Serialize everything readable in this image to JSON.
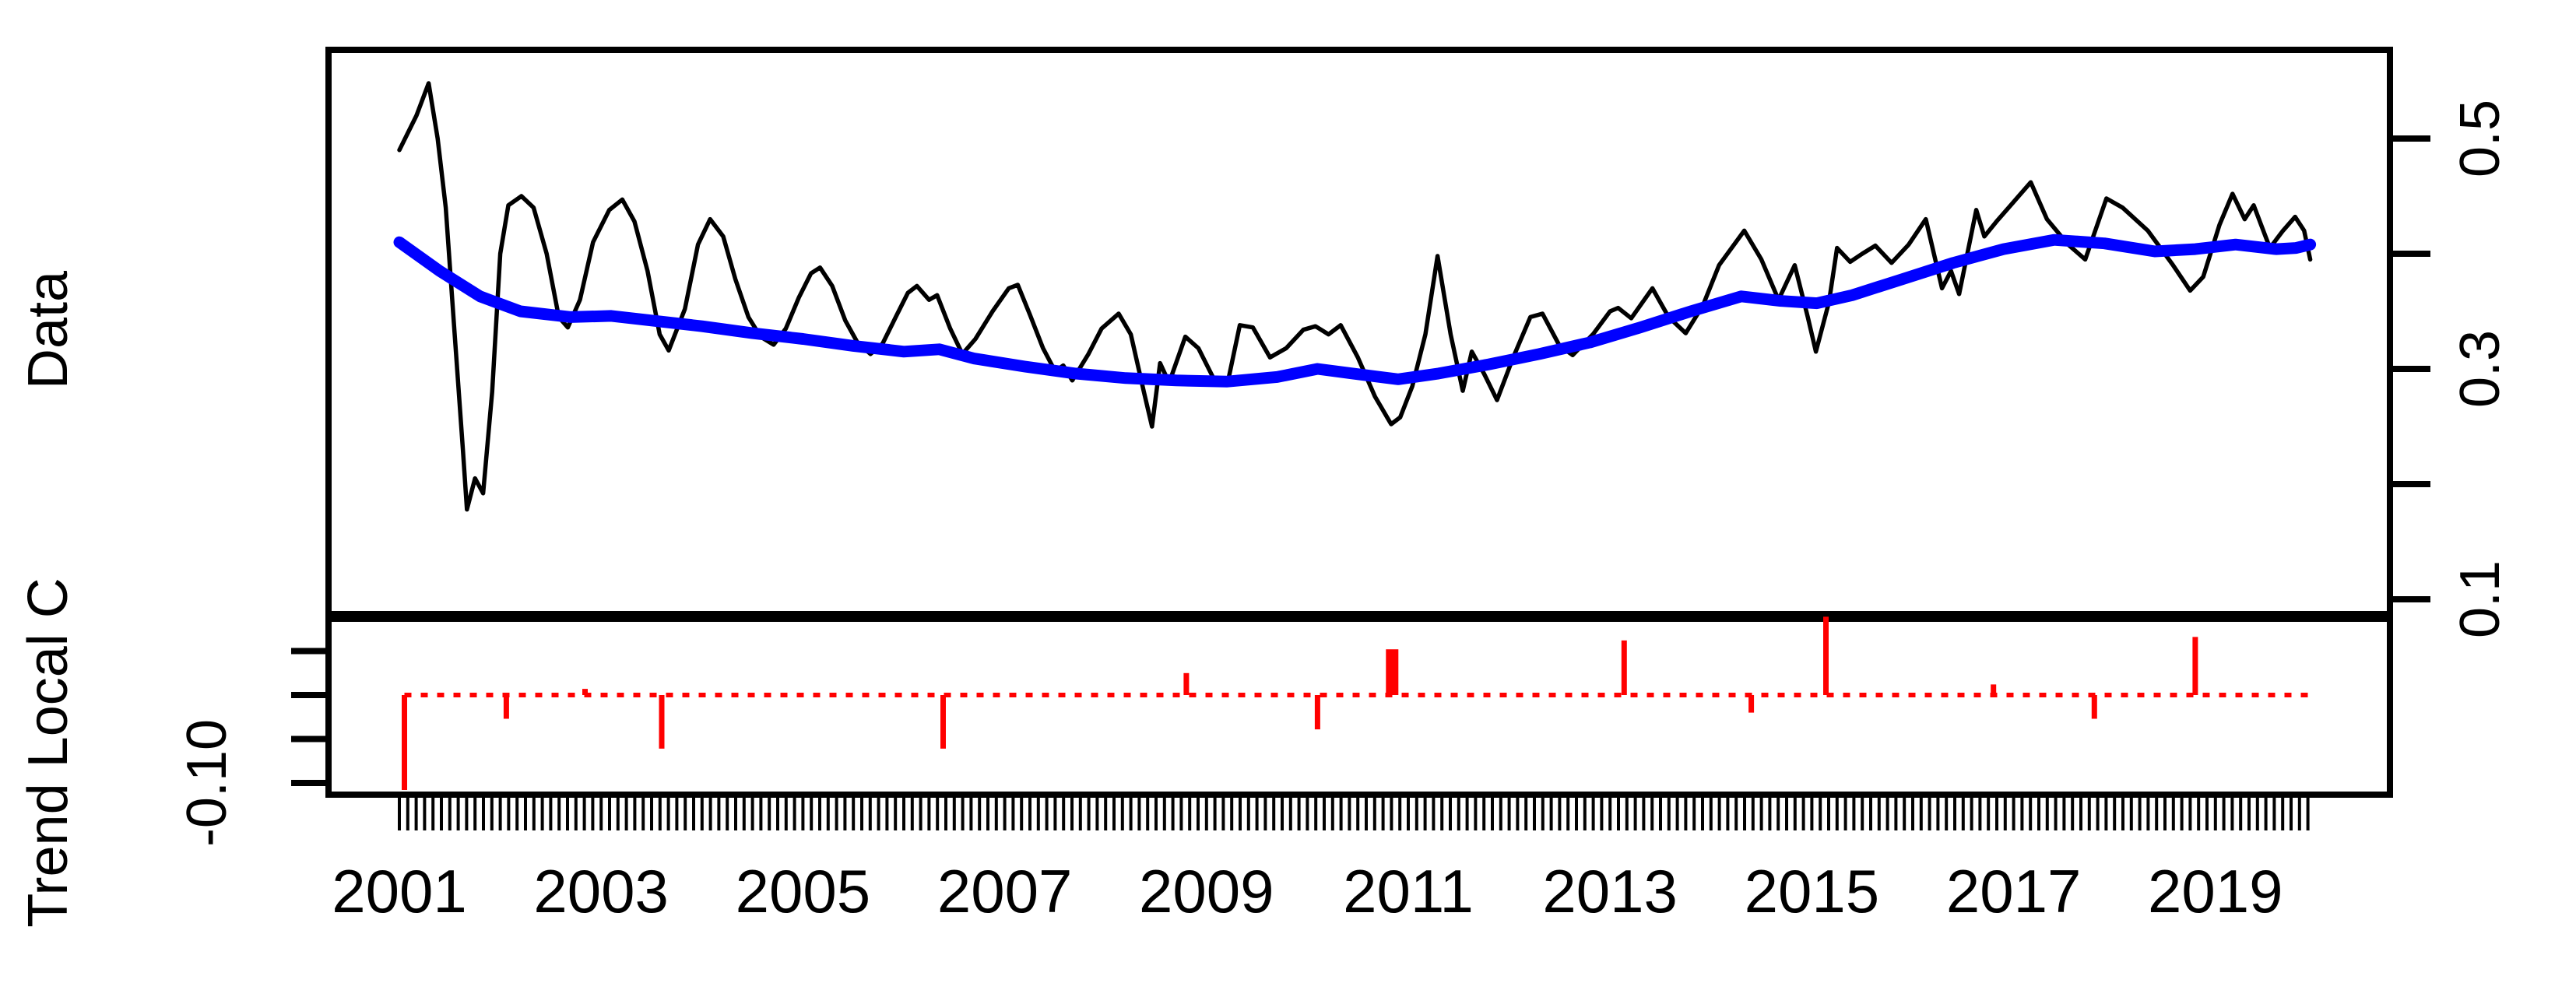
{
  "figure": {
    "background": "#ffffff",
    "frame_color": "#000000"
  },
  "labels": {
    "top_panel_ylab": "Data",
    "bottom_panel_ylab": "Trend Local C",
    "bottom_axis_tick_label": "-0.10",
    "right_axis_tick_labels": [
      "0.1",
      "0.3",
      "0.5"
    ]
  },
  "chart_data": {
    "type": "line",
    "title": "",
    "xlabel": "",
    "x_unit": "decimal_year",
    "frequency": 12,
    "x_range": [
      2001.0,
      2019.94
    ],
    "x_tick_years": [
      2001,
      2003,
      2005,
      2007,
      2009,
      2011,
      2013,
      2015,
      2017,
      2019
    ],
    "x_tick_labels": [
      "2001",
      "2003",
      "2005",
      "2007",
      "2009",
      "2011",
      "2013",
      "2015",
      "2017",
      "2019"
    ],
    "rug": {
      "count": 228,
      "start": 2001.0,
      "step_years": 0.0833333
    },
    "panels": [
      {
        "name": "Data",
        "ylabel": "Data",
        "axis_side": "right",
        "ylim": [
          0.085,
          0.577
        ],
        "yticks": [
          0.1,
          0.2,
          0.3,
          0.4,
          0.5
        ],
        "ytick_labeled": [
          0.1,
          0.3,
          0.5
        ],
        "grid": false,
        "series": [
          {
            "name": "observed",
            "type": "line",
            "color": "#000000",
            "stroke_width": 5.5,
            "points": [
              [
                2001.0,
                0.49
              ],
              [
                2001.17,
                0.52
              ],
              [
                2001.29,
                0.548
              ],
              [
                2001.38,
                0.5
              ],
              [
                2001.46,
                0.44
              ],
              [
                2001.54,
                0.34
              ],
              [
                2001.63,
                0.23
              ],
              [
                2001.67,
                0.178
              ],
              [
                2001.75,
                0.205
              ],
              [
                2001.83,
                0.192
              ],
              [
                2001.92,
                0.28
              ],
              [
                2002.0,
                0.4
              ],
              [
                2002.08,
                0.442
              ],
              [
                2002.21,
                0.45
              ],
              [
                2002.33,
                0.44
              ],
              [
                2002.46,
                0.4
              ],
              [
                2002.58,
                0.345
              ],
              [
                2002.67,
                0.336
              ],
              [
                2002.79,
                0.36
              ],
              [
                2002.92,
                0.41
              ],
              [
                2003.08,
                0.438
              ],
              [
                2003.21,
                0.447
              ],
              [
                2003.33,
                0.428
              ],
              [
                2003.46,
                0.385
              ],
              [
                2003.58,
                0.33
              ],
              [
                2003.67,
                0.316
              ],
              [
                2003.83,
                0.352
              ],
              [
                2003.96,
                0.408
              ],
              [
                2004.08,
                0.43
              ],
              [
                2004.21,
                0.415
              ],
              [
                2004.33,
                0.378
              ],
              [
                2004.46,
                0.345
              ],
              [
                2004.58,
                0.328
              ],
              [
                2004.71,
                0.321
              ],
              [
                2004.83,
                0.335
              ],
              [
                2004.96,
                0.362
              ],
              [
                2005.08,
                0.383
              ],
              [
                2005.17,
                0.388
              ],
              [
                2005.29,
                0.372
              ],
              [
                2005.42,
                0.342
              ],
              [
                2005.54,
                0.323
              ],
              [
                2005.67,
                0.313
              ],
              [
                2005.79,
                0.322
              ],
              [
                2005.92,
                0.345
              ],
              [
                2006.04,
                0.366
              ],
              [
                2006.13,
                0.372
              ],
              [
                2006.25,
                0.36
              ],
              [
                2006.33,
                0.364
              ],
              [
                2006.46,
                0.335
              ],
              [
                2006.58,
                0.313
              ],
              [
                2006.71,
                0.326
              ],
              [
                2006.88,
                0.35
              ],
              [
                2007.04,
                0.37
              ],
              [
                2007.13,
                0.373
              ],
              [
                2007.25,
                0.347
              ],
              [
                2007.38,
                0.318
              ],
              [
                2007.5,
                0.298
              ],
              [
                2007.58,
                0.303
              ],
              [
                2007.67,
                0.29
              ],
              [
                2007.83,
                0.313
              ],
              [
                2007.96,
                0.335
              ],
              [
                2008.13,
                0.348
              ],
              [
                2008.25,
                0.33
              ],
              [
                2008.38,
                0.28
              ],
              [
                2008.46,
                0.25
              ],
              [
                2008.54,
                0.305
              ],
              [
                2008.63,
                0.288
              ],
              [
                2008.79,
                0.328
              ],
              [
                2008.92,
                0.318
              ],
              [
                2009.08,
                0.29
              ],
              [
                2009.21,
                0.288
              ],
              [
                2009.33,
                0.338
              ],
              [
                2009.46,
                0.336
              ],
              [
                2009.63,
                0.31
              ],
              [
                2009.79,
                0.318
              ],
              [
                2009.96,
                0.334
              ],
              [
                2010.08,
                0.337
              ],
              [
                2010.21,
                0.33
              ],
              [
                2010.33,
                0.338
              ],
              [
                2010.5,
                0.31
              ],
              [
                2010.67,
                0.276
              ],
              [
                2010.83,
                0.252
              ],
              [
                2010.92,
                0.258
              ],
              [
                2011.04,
                0.285
              ],
              [
                2011.17,
                0.33
              ],
              [
                2011.29,
                0.398
              ],
              [
                2011.42,
                0.33
              ],
              [
                2011.54,
                0.281
              ],
              [
                2011.63,
                0.315
              ],
              [
                2011.75,
                0.296
              ],
              [
                2011.88,
                0.273
              ],
              [
                2012.04,
                0.31
              ],
              [
                2012.21,
                0.345
              ],
              [
                2012.33,
                0.348
              ],
              [
                2012.5,
                0.32
              ],
              [
                2012.63,
                0.312
              ],
              [
                2012.83,
                0.33
              ],
              [
                2013.0,
                0.35
              ],
              [
                2013.08,
                0.353
              ],
              [
                2013.21,
                0.344
              ],
              [
                2013.42,
                0.37
              ],
              [
                2013.58,
                0.345
              ],
              [
                2013.75,
                0.331
              ],
              [
                2013.92,
                0.355
              ],
              [
                2014.08,
                0.39
              ],
              [
                2014.33,
                0.42
              ],
              [
                2014.5,
                0.395
              ],
              [
                2014.67,
                0.36
              ],
              [
                2014.83,
                0.39
              ],
              [
                2014.96,
                0.345
              ],
              [
                2015.04,
                0.315
              ],
              [
                2015.17,
                0.358
              ],
              [
                2015.25,
                0.405
              ],
              [
                2015.38,
                0.393
              ],
              [
                2015.5,
                0.4
              ],
              [
                2015.63,
                0.407
              ],
              [
                2015.79,
                0.392
              ],
              [
                2015.96,
                0.408
              ],
              [
                2016.13,
                0.43
              ],
              [
                2016.29,
                0.37
              ],
              [
                2016.38,
                0.385
              ],
              [
                2016.46,
                0.365
              ],
              [
                2016.63,
                0.438
              ],
              [
                2016.71,
                0.415
              ],
              [
                2016.83,
                0.428
              ],
              [
                2017.0,
                0.445
              ],
              [
                2017.17,
                0.462
              ],
              [
                2017.33,
                0.43
              ],
              [
                2017.54,
                0.408
              ],
              [
                2017.71,
                0.395
              ],
              [
                2017.92,
                0.448
              ],
              [
                2018.08,
                0.44
              ],
              [
                2018.33,
                0.42
              ],
              [
                2018.58,
                0.39
              ],
              [
                2018.75,
                0.368
              ],
              [
                2018.88,
                0.38
              ],
              [
                2019.04,
                0.425
              ],
              [
                2019.17,
                0.452
              ],
              [
                2019.29,
                0.43
              ],
              [
                2019.38,
                0.442
              ],
              [
                2019.54,
                0.405
              ],
              [
                2019.67,
                0.42
              ],
              [
                2019.79,
                0.432
              ],
              [
                2019.88,
                0.42
              ],
              [
                2019.94,
                0.395
              ]
            ]
          },
          {
            "name": "trend-smooth",
            "type": "line",
            "color": "#0000ff",
            "stroke_width": 15,
            "points": [
              [
                2001.0,
                0.41
              ],
              [
                2001.4,
                0.385
              ],
              [
                2001.8,
                0.363
              ],
              [
                2002.2,
                0.35
              ],
              [
                2002.7,
                0.345
              ],
              [
                2003.1,
                0.346
              ],
              [
                2003.5,
                0.342
              ],
              [
                2004.0,
                0.337
              ],
              [
                2004.5,
                0.331
              ],
              [
                2005.0,
                0.326
              ],
              [
                2005.5,
                0.32
              ],
              [
                2006.0,
                0.315
              ],
              [
                2006.35,
                0.317
              ],
              [
                2006.7,
                0.309
              ],
              [
                2007.2,
                0.302
              ],
              [
                2007.7,
                0.296
              ],
              [
                2008.2,
                0.292
              ],
              [
                2008.7,
                0.29
              ],
              [
                2009.2,
                0.289
              ],
              [
                2009.7,
                0.293
              ],
              [
                2010.1,
                0.3
              ],
              [
                2010.45,
                0.296
              ],
              [
                2010.9,
                0.291
              ],
              [
                2011.3,
                0.296
              ],
              [
                2011.8,
                0.304
              ],
              [
                2012.3,
                0.313
              ],
              [
                2012.8,
                0.323
              ],
              [
                2013.3,
                0.336
              ],
              [
                2013.8,
                0.35
              ],
              [
                2014.3,
                0.363
              ],
              [
                2014.7,
                0.359
              ],
              [
                2015.05,
                0.357
              ],
              [
                2015.4,
                0.364
              ],
              [
                2015.9,
                0.378
              ],
              [
                2016.4,
                0.392
              ],
              [
                2016.9,
                0.404
              ],
              [
                2017.4,
                0.412
              ],
              [
                2017.9,
                0.409
              ],
              [
                2018.4,
                0.402
              ],
              [
                2018.8,
                0.404
              ],
              [
                2019.2,
                0.408
              ],
              [
                2019.6,
                0.404
              ],
              [
                2019.8,
                0.405
              ],
              [
                2019.94,
                0.408
              ]
            ]
          }
        ]
      },
      {
        "name": "Trend Local C",
        "ylabel": "Trend Local C",
        "axis_side": "left",
        "ylim": [
          -0.113,
          0.089
        ],
        "yticks": [
          0.05,
          0.0,
          -0.05,
          -0.1
        ],
        "ytick_labeled": [
          -0.1
        ],
        "grid": false,
        "zero_line": {
          "value": 0.0,
          "style": "dotted",
          "color": "#ff0000",
          "x_from": 2001.05,
          "x_to": 2019.98
        },
        "series": [
          {
            "name": "local-trend-changes",
            "type": "spikes",
            "color": "#ff0000",
            "stroke_width": 7,
            "thick_at": 2010.84,
            "thick_stroke_width": 16,
            "points": [
              [
                2001.05,
                -0.108
              ],
              [
                2002.06,
                -0.027
              ],
              [
                2002.84,
                0.007
              ],
              [
                2003.6,
                -0.061
              ],
              [
                2006.39,
                -0.061
              ],
              [
                2008.8,
                0.025
              ],
              [
                2010.1,
                -0.039
              ],
              [
                2010.84,
                0.052
              ],
              [
                2013.14,
                0.062
              ],
              [
                2014.4,
                -0.02
              ],
              [
                2015.14,
                0.089
              ],
              [
                2016.8,
                0.012
              ],
              [
                2017.8,
                -0.027
              ],
              [
                2018.8,
                0.066
              ]
            ]
          }
        ]
      }
    ]
  }
}
